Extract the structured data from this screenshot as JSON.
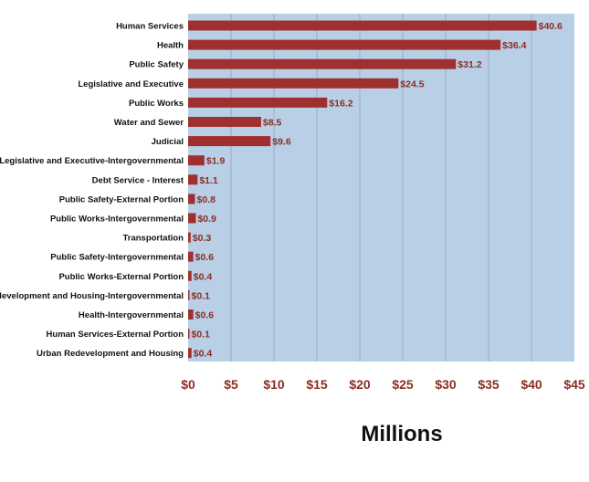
{
  "chart_data": {
    "type": "bar",
    "orientation": "horizontal",
    "title": "",
    "xlabel": "Millions",
    "ylabel": "",
    "xlim": [
      0,
      45
    ],
    "x_ticks": [
      0,
      5,
      10,
      15,
      20,
      25,
      30,
      35,
      40,
      45
    ],
    "x_tick_labels": [
      "$0",
      "$5",
      "$10",
      "$15",
      "$20",
      "$25",
      "$30",
      "$35",
      "$40",
      "$45"
    ],
    "grid": true,
    "legend": "none",
    "categories": [
      "Human Services",
      "Health",
      "Public Safety",
      "Legislative and Executive",
      "Public Works",
      "Water and Sewer",
      "Judicial",
      "Legislative and Executive-Intergovernmental",
      "Debt Service - Interest",
      "Public Safety-External Portion",
      "Public Works-Intergovernmental",
      "Transportation",
      "Public Safety-Intergovernmental",
      "Public Works-External Portion",
      "Urban Redevelopment and Housing-Intergovernmental",
      "Health-Intergovernmental",
      "Human Services-External Portion",
      "Urban Redevelopment and Housing"
    ],
    "values": [
      40.6,
      36.4,
      31.2,
      24.5,
      16.2,
      8.5,
      9.6,
      1.9,
      1.1,
      0.8,
      0.9,
      0.3,
      0.6,
      0.4,
      0.1,
      0.6,
      0.1,
      0.4
    ],
    "value_labels": [
      "$40.6",
      "$36.4",
      "$31.2",
      "$24.5",
      "$16.2",
      "$8.5",
      "$9.6",
      "$1.9",
      "$1.1",
      "$0.8",
      "$0.9",
      "$0.3",
      "$0.6",
      "$0.4",
      "$0.1",
      "$0.6",
      "$0.1",
      "$0.4"
    ],
    "colors": {
      "bar": "#a0302f",
      "plot_background": "#b9cfe6",
      "gridline": "#8fa6c2",
      "value_label": "#8b2e22",
      "tick_label": "#8b2e22"
    }
  }
}
